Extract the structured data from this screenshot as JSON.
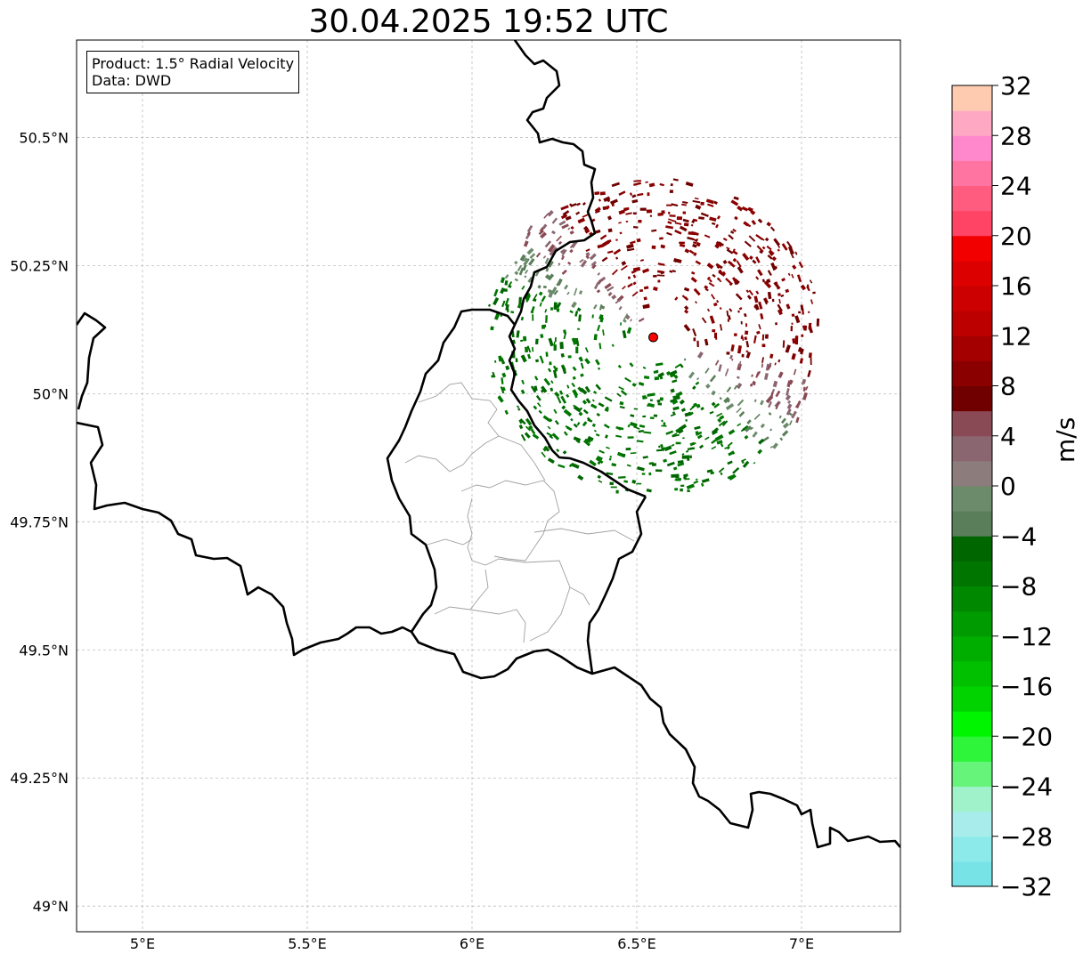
{
  "title": "30.04.2025 19:52 UTC",
  "info": {
    "product": "Product: 1.5° Radial Velocity",
    "source": "Data: DWD"
  },
  "map": {
    "lon_range": [
      4.8,
      7.3
    ],
    "lat_range": [
      48.95,
      50.69
    ],
    "x_ticks": [
      {
        "value": 5.0,
        "label": "5°E"
      },
      {
        "value": 5.5,
        "label": "5.5°E"
      },
      {
        "value": 6.0,
        "label": "6°E"
      },
      {
        "value": 6.5,
        "label": "6.5°E"
      },
      {
        "value": 7.0,
        "label": "7°E"
      }
    ],
    "y_ticks": [
      {
        "value": 49.0,
        "label": "49°N"
      },
      {
        "value": 49.25,
        "label": "49.25°N"
      },
      {
        "value": 49.5,
        "label": "49.5°N"
      },
      {
        "value": 49.75,
        "label": "49.75°N"
      },
      {
        "value": 50.0,
        "label": "50°N"
      },
      {
        "value": 50.25,
        "label": "50.25°N"
      },
      {
        "value": 50.5,
        "label": "50.5°N"
      }
    ],
    "radar_site": {
      "lon": 6.55,
      "lat": 50.11,
      "color": "#ff0000"
    }
  },
  "colorbar": {
    "unit": "m/s",
    "min": -32,
    "max": 32,
    "step": 4,
    "tick_labels": [
      "32",
      "28",
      "24",
      "20",
      "16",
      "12",
      "8",
      "4",
      "0",
      "−4",
      "−8",
      "−12",
      "−16",
      "−20",
      "−24",
      "−28",
      "−32"
    ],
    "colors_bottom_to_top": [
      "#78e3e6",
      "#8ceaea",
      "#a8ecec",
      "#9ff2c9",
      "#66f57a",
      "#2ef53a",
      "#00f500",
      "#00d300",
      "#00c000",
      "#00ae00",
      "#009b00",
      "#008800",
      "#007500",
      "#006600",
      "#5a7e5a",
      "#6b8b6b",
      "#8c7c7c",
      "#8a6670",
      "#8a4a55",
      "#700000",
      "#8a0000",
      "#a40000",
      "#bc0000",
      "#cc0000",
      "#dd0000",
      "#f20000",
      "#ff4466",
      "#ff5c80",
      "#ff74a0",
      "#ff88cc",
      "#ffa8c4",
      "#ffcbb0"
    ]
  }
}
